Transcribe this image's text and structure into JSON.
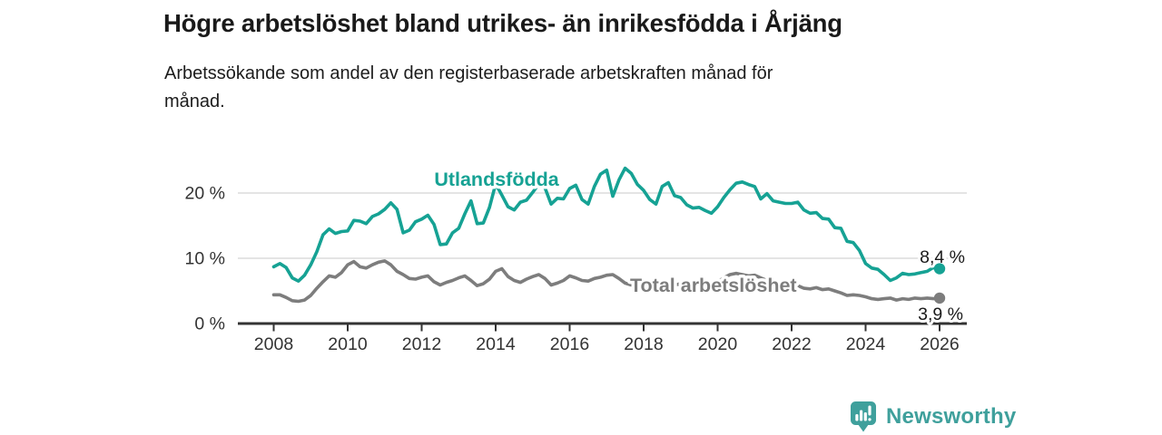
{
  "header": {
    "title": "Högre arbetslöshet bland utrikes- än inrikesfödda i Årjäng",
    "subtitle": "Arbetssökande som andel av den registerbaserade arbetskraften månad för månad.",
    "subtitle_lines": [
      "Arbetssökande som andel av den registerbaserade arbetskraften månad för",
      "månad."
    ]
  },
  "branding": {
    "logo_text": "Newsworthy"
  },
  "colors": {
    "accent_teal": "#16A294",
    "line_gray": "#7D7D7D",
    "axis": "#333333",
    "gridline": "#DBDBDB",
    "text_dark": "#1a1a1a",
    "logo_teal": "#3FA09C"
  },
  "chart_data": {
    "type": "line",
    "title": "Högre arbetslöshet bland utrikes- än inrikesfödda i Årjäng",
    "subtitle": "Arbetssökande som andel av den registerbaserade arbetskraften månad för månad.",
    "xlabel": "",
    "ylabel": "",
    "grid": "horizontal-only",
    "legend": "inline-series-labels",
    "xlim": [
      2007,
      2026.75
    ],
    "ylim": [
      0,
      25
    ],
    "x_start": 2008.0,
    "x_step_years": 0.1666667,
    "x_label_ticks": [
      2008,
      2010,
      2012,
      2014,
      2016,
      2018,
      2020,
      2022,
      2024,
      2026
    ],
    "y_ticks": [
      {
        "value": 0,
        "label": "0 %"
      },
      {
        "value": 10,
        "label": "10 %"
      },
      {
        "value": 20,
        "label": "20 %"
      }
    ],
    "series": [
      {
        "name": "Utlandsfödda",
        "color": "#16A294",
        "end_value": 8.4,
        "end_label": "8,4 %",
        "values": [
          8.7,
          9.2,
          8.6,
          7.0,
          6.5,
          7.4,
          9.0,
          11.0,
          13.6,
          14.5,
          13.8,
          14.1,
          14.2,
          15.8,
          15.7,
          15.3,
          16.4,
          16.8,
          17.5,
          18.5,
          17.5,
          13.9,
          14.3,
          15.6,
          16.0,
          16.6,
          15.2,
          12.1,
          12.2,
          13.9,
          14.6,
          16.8,
          18.8,
          15.3,
          15.4,
          17.8,
          21.4,
          19.7,
          17.9,
          17.4,
          18.6,
          18.9,
          20.1,
          21.4,
          20.8,
          18.3,
          19.2,
          19.1,
          20.7,
          21.2,
          19.0,
          18.3,
          21.0,
          22.9,
          23.5,
          19.5,
          22.0,
          23.8,
          23.0,
          21.3,
          20.4,
          19.0,
          18.3,
          21.0,
          21.6,
          19.6,
          19.3,
          18.2,
          17.7,
          17.8,
          17.3,
          16.9,
          17.9,
          19.3,
          20.5,
          21.5,
          21.7,
          21.3,
          21.0,
          19.1,
          19.9,
          18.8,
          18.6,
          18.4,
          18.4,
          18.6,
          17.4,
          16.9,
          17.0,
          16.1,
          16.0,
          14.7,
          14.6,
          12.6,
          12.4,
          11.2,
          9.2,
          8.5,
          8.3,
          7.5,
          6.6,
          7.0,
          7.7,
          7.5,
          7.6,
          7.8,
          8.0,
          8.6,
          8.4
        ]
      },
      {
        "name": "Total arbetslöshet",
        "color": "#7D7D7D",
        "end_value": 3.9,
        "end_label": "3,9 %",
        "values": [
          4.4,
          4.4,
          4.0,
          3.5,
          3.4,
          3.6,
          4.3,
          5.4,
          6.4,
          7.3,
          7.1,
          7.8,
          9.0,
          9.5,
          8.7,
          8.5,
          9.0,
          9.4,
          9.6,
          9.0,
          8.0,
          7.5,
          6.9,
          6.8,
          7.1,
          7.3,
          6.4,
          5.9,
          6.3,
          6.6,
          7.0,
          7.3,
          6.6,
          5.8,
          6.1,
          6.8,
          8.0,
          8.4,
          7.2,
          6.6,
          6.3,
          6.8,
          7.2,
          7.5,
          6.9,
          5.9,
          6.2,
          6.6,
          7.3,
          7.0,
          6.6,
          6.5,
          6.9,
          7.1,
          7.4,
          7.5,
          6.9,
          6.2,
          5.9,
          6.1,
          6.3,
          6.1,
          5.7,
          5.5,
          5.7,
          5.9,
          6.1,
          5.9,
          5.6,
          5.7,
          5.9,
          6.1,
          6.4,
          7.0,
          7.5,
          7.7,
          7.5,
          7.3,
          7.4,
          7.0,
          6.6,
          6.3,
          6.1,
          6.0,
          6.0,
          5.8,
          5.4,
          5.3,
          5.5,
          5.2,
          5.3,
          5.0,
          4.7,
          4.3,
          4.4,
          4.3,
          4.1,
          3.8,
          3.7,
          3.8,
          3.9,
          3.6,
          3.8,
          3.7,
          3.9,
          3.8,
          3.9,
          3.8,
          3.9
        ]
      }
    ]
  }
}
